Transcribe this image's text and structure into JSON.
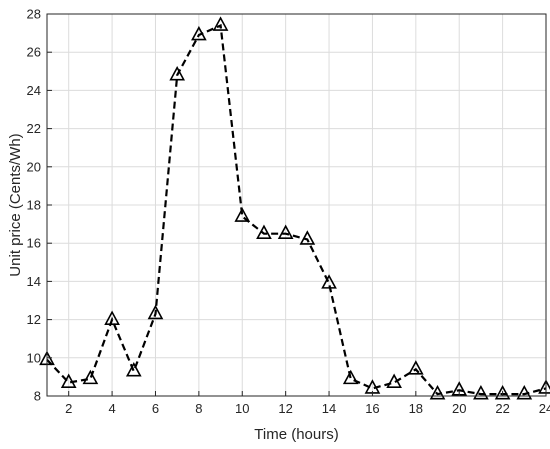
{
  "chart_data": {
    "type": "line",
    "title": "",
    "xlabel": "Time (hours)",
    "ylabel": "Unit price (Cents/Wh)",
    "xlim": [
      1,
      24
    ],
    "ylim": [
      8,
      28
    ],
    "x_ticks": [
      2,
      4,
      6,
      8,
      10,
      12,
      14,
      16,
      18,
      20,
      22,
      24
    ],
    "y_ticks": [
      8,
      10,
      12,
      14,
      16,
      18,
      20,
      22,
      24,
      26,
      28
    ],
    "grid": true,
    "legend": "none",
    "series": [
      {
        "line_style": "dashed",
        "marker": "triangle",
        "color": "#000000",
        "x": [
          1,
          2,
          3,
          4,
          5,
          6,
          7,
          8,
          9,
          10,
          11,
          12,
          13,
          14,
          15,
          16,
          17,
          18,
          19,
          20,
          21,
          22,
          23,
          24
        ],
        "y": [
          9.9,
          8.7,
          8.9,
          12.0,
          9.3,
          12.3,
          24.8,
          26.9,
          27.4,
          17.4,
          16.5,
          16.5,
          16.2,
          13.9,
          8.9,
          8.4,
          8.7,
          9.4,
          8.1,
          8.3,
          8.1,
          8.1,
          8.1,
          8.4
        ]
      }
    ]
  }
}
